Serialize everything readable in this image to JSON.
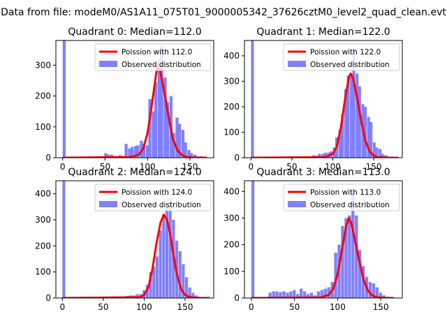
{
  "figure_title": "Data from file: modeM0/AS1A11_075T01_9000005342_37626cztM0_level2_quad_clean.evt",
  "colors": {
    "poisson": "#ff0000",
    "observed": "#8080ff",
    "axes": "#000000"
  },
  "legend_labels": {
    "poisson_prefix": "Poission with",
    "observed": "Observed distribution"
  },
  "chart_data": [
    {
      "type": "bar",
      "title": "Quadrant 0: Median=112.0",
      "median": 112.0,
      "poisson_label": "Poission with 112.0",
      "observed_label": "Observed distribution",
      "xlim": [
        -8,
        178
      ],
      "ylim": [
        0,
        380
      ],
      "xticks": [
        0,
        50,
        100,
        150
      ],
      "yticks": [
        0,
        100,
        200,
        300
      ],
      "legend_position": "top-right",
      "bin_width": 3.5,
      "observed": [
        [
          0,
          380
        ],
        [
          42,
          5
        ],
        [
          45,
          5
        ],
        [
          49,
          15
        ],
        [
          52,
          10
        ],
        [
          56,
          10
        ],
        [
          59,
          5
        ],
        [
          63,
          5
        ],
        [
          66,
          8
        ],
        [
          70,
          5
        ],
        [
          73,
          45
        ],
        [
          77,
          30
        ],
        [
          80,
          35
        ],
        [
          84,
          38
        ],
        [
          87,
          40
        ],
        [
          91,
          55
        ],
        [
          94,
          45
        ],
        [
          98,
          40
        ],
        [
          101,
          190
        ],
        [
          105,
          150
        ],
        [
          108,
          245
        ],
        [
          112,
          320
        ],
        [
          115,
          360
        ],
        [
          119,
          260
        ],
        [
          122,
          180
        ],
        [
          126,
          200
        ],
        [
          129,
          80
        ],
        [
          133,
          130
        ],
        [
          136,
          110
        ],
        [
          140,
          90
        ],
        [
          143,
          50
        ],
        [
          147,
          25
        ],
        [
          150,
          15
        ],
        [
          154,
          10
        ],
        [
          157,
          5
        ],
        [
          161,
          5
        ],
        [
          164,
          3
        ]
      ],
      "poisson_curve": [
        [
          0,
          0
        ],
        [
          80,
          2
        ],
        [
          90,
          10
        ],
        [
          95,
          30
        ],
        [
          100,
          80
        ],
        [
          105,
          170
        ],
        [
          110,
          270
        ],
        [
          112,
          300
        ],
        [
          115,
          280
        ],
        [
          120,
          210
        ],
        [
          125,
          130
        ],
        [
          130,
          60
        ],
        [
          135,
          25
        ],
        [
          140,
          10
        ],
        [
          145,
          3
        ],
        [
          150,
          1
        ],
        [
          160,
          0
        ],
        [
          170,
          0
        ]
      ]
    },
    {
      "type": "bar",
      "title": "Quadrant 1: Median=122.0",
      "median": 122.0,
      "poisson_label": "Poission with 122.0",
      "observed_label": "Observed distribution",
      "xlim": [
        -8,
        185
      ],
      "ylim": [
        0,
        460
      ],
      "xticks": [
        0,
        50,
        100,
        150
      ],
      "yticks": [
        0,
        100,
        200,
        300,
        400
      ],
      "legend_position": "top-right",
      "bin_width": 3.5,
      "observed": [
        [
          0,
          460
        ],
        [
          68,
          5
        ],
        [
          72,
          5
        ],
        [
          75,
          10
        ],
        [
          79,
          8
        ],
        [
          82,
          15
        ],
        [
          86,
          15
        ],
        [
          89,
          20
        ],
        [
          93,
          20
        ],
        [
          96,
          25
        ],
        [
          100,
          40
        ],
        [
          103,
          80
        ],
        [
          107,
          110
        ],
        [
          110,
          170
        ],
        [
          114,
          270
        ],
        [
          117,
          320
        ],
        [
          121,
          330
        ],
        [
          124,
          420
        ],
        [
          128,
          330
        ],
        [
          131,
          280
        ],
        [
          135,
          210
        ],
        [
          138,
          200
        ],
        [
          142,
          160
        ],
        [
          145,
          140
        ],
        [
          149,
          60
        ],
        [
          152,
          40
        ],
        [
          156,
          35
        ],
        [
          159,
          15
        ],
        [
          163,
          10
        ],
        [
          166,
          5
        ],
        [
          170,
          3
        ]
      ],
      "poisson_curve": [
        [
          0,
          0
        ],
        [
          90,
          2
        ],
        [
          100,
          15
        ],
        [
          105,
          45
        ],
        [
          110,
          120
        ],
        [
          115,
          230
        ],
        [
          120,
          320
        ],
        [
          122,
          330
        ],
        [
          125,
          310
        ],
        [
          130,
          230
        ],
        [
          135,
          140
        ],
        [
          140,
          65
        ],
        [
          145,
          25
        ],
        [
          150,
          8
        ],
        [
          155,
          2
        ],
        [
          170,
          0
        ],
        [
          180,
          0
        ]
      ]
    },
    {
      "type": "bar",
      "title": "Quadrant 2: Median=124.0",
      "median": 124.0,
      "poisson_label": "Poission with 124.0",
      "observed_label": "Observed distribution",
      "xlim": [
        -8,
        185
      ],
      "ylim": [
        0,
        450
      ],
      "xticks": [
        0,
        50,
        100,
        150
      ],
      "yticks": [
        0,
        100,
        200,
        300,
        400
      ],
      "legend_position": "top-right",
      "bin_width": 3.5,
      "observed": [
        [
          0,
          450
        ],
        [
          70,
          5
        ],
        [
          74,
          5
        ],
        [
          78,
          8
        ],
        [
          82,
          10
        ],
        [
          86,
          10
        ],
        [
          90,
          15
        ],
        [
          94,
          15
        ],
        [
          98,
          30
        ],
        [
          102,
          50
        ],
        [
          106,
          100
        ],
        [
          110,
          120
        ],
        [
          114,
          160
        ],
        [
          118,
          260
        ],
        [
          122,
          320
        ],
        [
          126,
          350
        ],
        [
          130,
          380
        ],
        [
          134,
          300
        ],
        [
          138,
          220
        ],
        [
          142,
          180
        ],
        [
          146,
          130
        ],
        [
          150,
          80
        ],
        [
          154,
          40
        ],
        [
          158,
          20
        ],
        [
          162,
          10
        ],
        [
          166,
          5
        ]
      ],
      "poisson_curve": [
        [
          0,
          0
        ],
        [
          95,
          3
        ],
        [
          100,
          12
        ],
        [
          105,
          40
        ],
        [
          110,
          110
        ],
        [
          115,
          210
        ],
        [
          120,
          290
        ],
        [
          124,
          320
        ],
        [
          128,
          300
        ],
        [
          132,
          240
        ],
        [
          136,
          160
        ],
        [
          140,
          90
        ],
        [
          145,
          35
        ],
        [
          150,
          12
        ],
        [
          155,
          4
        ],
        [
          165,
          0
        ],
        [
          180,
          0
        ]
      ]
    },
    {
      "type": "bar",
      "title": "Quadrant 3: Median=113.0",
      "median": 113.0,
      "poisson_label": "Poission with 113.0",
      "observed_label": "Observed distribution",
      "xlim": [
        -8,
        175
      ],
      "ylim": [
        0,
        440
      ],
      "xticks": [
        0,
        50,
        100,
        150
      ],
      "yticks": [
        0,
        100,
        200,
        300,
        400
      ],
      "legend_position": "top-right",
      "bin_width": 3.5,
      "observed": [
        [
          0,
          440
        ],
        [
          20,
          20
        ],
        [
          24,
          25
        ],
        [
          28,
          25
        ],
        [
          32,
          22
        ],
        [
          36,
          25
        ],
        [
          40,
          20
        ],
        [
          44,
          25
        ],
        [
          48,
          30
        ],
        [
          52,
          15
        ],
        [
          56,
          35
        ],
        [
          60,
          25
        ],
        [
          64,
          15
        ],
        [
          68,
          20
        ],
        [
          72,
          10
        ],
        [
          76,
          25
        ],
        [
          80,
          30
        ],
        [
          84,
          35
        ],
        [
          88,
          40
        ],
        [
          92,
          60
        ],
        [
          96,
          170
        ],
        [
          100,
          200
        ],
        [
          104,
          270
        ],
        [
          108,
          300
        ],
        [
          112,
          310
        ],
        [
          116,
          400
        ],
        [
          120,
          310
        ],
        [
          124,
          180
        ],
        [
          128,
          120
        ],
        [
          132,
          80
        ],
        [
          136,
          60
        ],
        [
          140,
          55
        ],
        [
          144,
          40
        ],
        [
          148,
          20
        ],
        [
          152,
          10
        ],
        [
          156,
          5
        ]
      ],
      "poisson_curve": [
        [
          0,
          0
        ],
        [
          80,
          2
        ],
        [
          90,
          12
        ],
        [
          95,
          35
        ],
        [
          100,
          90
        ],
        [
          105,
          180
        ],
        [
          110,
          270
        ],
        [
          113,
          300
        ],
        [
          116,
          280
        ],
        [
          120,
          220
        ],
        [
          125,
          140
        ],
        [
          130,
          70
        ],
        [
          135,
          28
        ],
        [
          140,
          10
        ],
        [
          145,
          3
        ],
        [
          155,
          0
        ],
        [
          165,
          0
        ]
      ]
    }
  ]
}
